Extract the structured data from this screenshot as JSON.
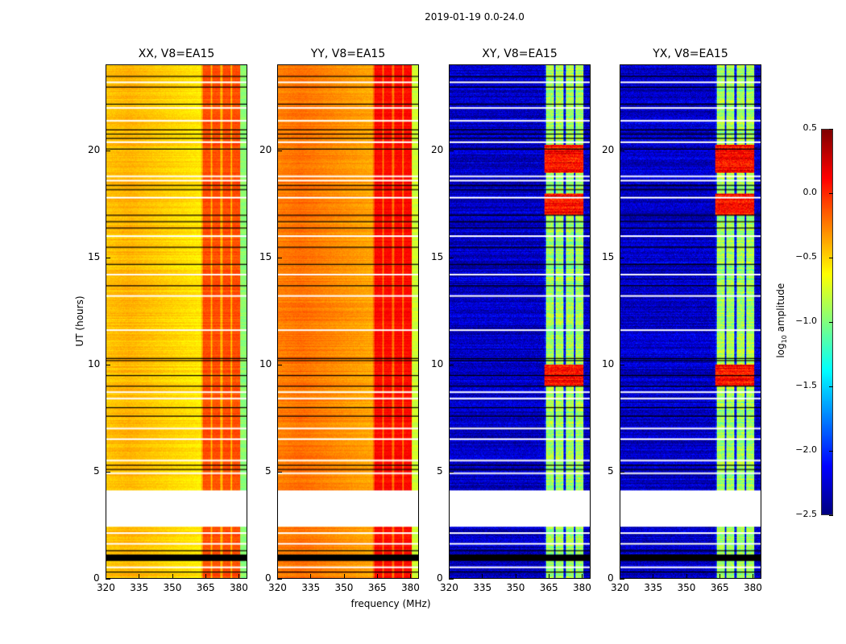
{
  "figure_title": "2019-01-19 0.0-24.0",
  "chart_data": [
    {
      "type": "heatmap",
      "title": "XX, V8=EA15",
      "base_log_amp": -0.4,
      "band_log_amp": -0.1
    },
    {
      "type": "heatmap",
      "title": "YY, V8=EA15",
      "base_log_amp": -0.2,
      "band_log_amp": 0.1
    },
    {
      "type": "heatmap",
      "title": "XY, V8=EA15",
      "base_log_amp": -2.3,
      "band_log_amp": -0.9
    },
    {
      "type": "heatmap",
      "title": "YX, V8=EA15",
      "base_log_amp": -2.3,
      "band_log_amp": -0.9
    }
  ],
  "axes": {
    "xlabel": "frequency (MHz)",
    "ylabel": "UT (hours)",
    "xlim": [
      320,
      384
    ],
    "ylim": [
      0,
      24
    ],
    "xticks": [
      "320",
      "335",
      "350",
      "365",
      "380"
    ],
    "yticks": [
      "0",
      "5",
      "10",
      "15",
      "20"
    ],
    "rfi_band_mhz": [
      363,
      381
    ],
    "flagged_gap_hours": [
      2.4,
      4.1
    ],
    "black_band_hours": [
      0.8,
      1.1
    ],
    "white_flag_hours": [
      23.2,
      22.0,
      21.4,
      20.4,
      18.8,
      18.6,
      17.8,
      16.0,
      14.2,
      13.2,
      11.6,
      8.7,
      8.4,
      7.0,
      6.5,
      5.5,
      4.9,
      2.1,
      1.6,
      0.5
    ],
    "black_flag_hours": [
      23.5,
      23.0,
      22.2,
      21.0,
      20.8,
      20.6,
      20.1,
      18.4,
      18.2,
      17.0,
      16.7,
      16.4,
      15.5,
      14.7,
      13.7,
      10.3,
      10.2,
      9.5,
      9.0,
      8.0,
      7.6,
      5.3,
      5.1,
      1.3,
      0.3
    ]
  },
  "colorbar": {
    "label_main": "log",
    "label_sub": "10",
    "label_rest": " amplitude",
    "range": [
      -2.5,
      0.5
    ],
    "ticks": [
      "0.5",
      "0.0",
      "−0.5",
      "−1.0",
      "−1.5",
      "−2.0",
      "−2.5"
    ],
    "colormap": "jet"
  }
}
